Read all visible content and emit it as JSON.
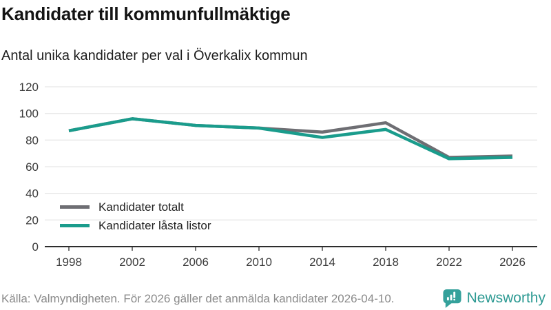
{
  "header": {
    "title": "Kandidater till kommunfullmäktige",
    "subtitle": "Antal unika kandidater per val i Överkalix kommun"
  },
  "chart_data": {
    "type": "line",
    "title": "Kandidater till kommunfullmäktige",
    "subtitle": "Antal unika kandidater per val i Överkalix kommun",
    "categories": [
      "1998",
      "2002",
      "2006",
      "2010",
      "2014",
      "2018",
      "2022",
      "2026"
    ],
    "series": [
      {
        "name": "Kandidater totalt",
        "color": "#6e6e73",
        "values": [
          87,
          96,
          91,
          89,
          86,
          93,
          67,
          68
        ]
      },
      {
        "name": "Kandidater låsta listor",
        "color": "#1a9c8c",
        "values": [
          87,
          96,
          91,
          89,
          82,
          88,
          66,
          67
        ]
      }
    ],
    "xlabel": "",
    "ylabel": "",
    "ylim": [
      0,
      120
    ],
    "yticks": [
      0,
      20,
      40,
      60,
      80,
      100,
      120
    ],
    "grid": "horizontal-only",
    "legend_position": "inside-bottom-left"
  },
  "footer": {
    "source": "Källa: Valmyndigheten. För 2026 gäller det anmälda kandidater 2026-04-10.",
    "brand": "Newsworthy",
    "brand_color": "#2d9a93",
    "brand_icon_color": "#35a19b",
    "brand_icon": "speech-bubble-bar-chart"
  },
  "colors": {
    "background": "#ffffff",
    "gridline": "#e8e8e8",
    "axis": "#2d2d2d",
    "tick_label": "#3c3c3c",
    "title_text": "#141414",
    "source_text": "#8a8a8a"
  }
}
